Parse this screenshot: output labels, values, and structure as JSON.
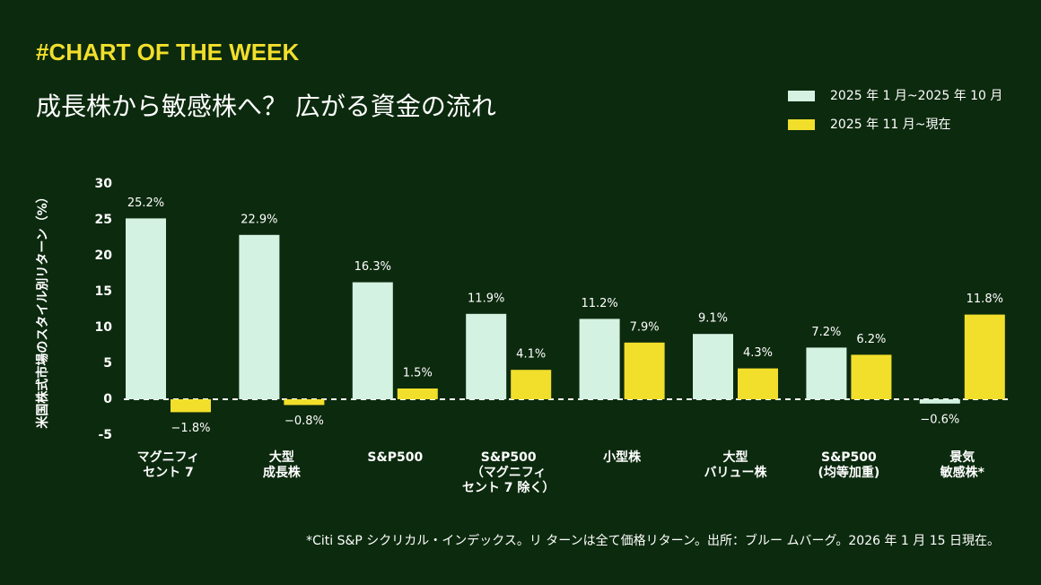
{
  "header": {
    "tag": "#CHART OF THE WEEK",
    "title": "成長株から敏感株へ？ 広がる資金の流れ"
  },
  "chart_data": {
    "type": "bar",
    "y_label": "米国株式市場のスタイル別リターン（%）",
    "categories": [
      "マグニフィ\nセント 7",
      "大型\n成長株",
      "S&P500",
      "S&P500\n（マグニフィ\nセント 7 除く）",
      "小型株",
      "大型\nバリュー株",
      "S&P500\n(均等加重)",
      "景気\n敏感株*"
    ],
    "series": [
      {
        "name": "2025 年 1 月~2025 年 10 月",
        "color": "#d3f2e1",
        "values": [
          25.2,
          22.9,
          16.3,
          11.9,
          11.2,
          9.1,
          7.2,
          -0.6
        ],
        "value_labels": [
          "25.2%",
          "22.9%",
          "16.3%",
          "11.9%",
          "11.2%",
          "9.1%",
          "7.2%",
          "−0.6%"
        ]
      },
      {
        "name": "2025 年 11 月~現在",
        "color": "#f2df2b",
        "values": [
          -1.8,
          -0.8,
          1.5,
          4.1,
          7.9,
          4.3,
          6.2,
          11.8
        ],
        "value_labels": [
          "−1.8%",
          "−0.8%",
          "1.5%",
          "4.1%",
          "7.9%",
          "4.3%",
          "6.2%",
          "11.8%"
        ]
      }
    ],
    "ylim": [
      -5,
      30
    ],
    "yticks": [
      -5,
      0,
      5,
      10,
      15,
      20,
      25,
      30
    ],
    "grid": false
  },
  "footnote": "*Citi S&P シクリカル・インデックス。リ ターンは全て価格リターン。出所：ブルー ムバーグ。2026 年 1 月 15 日現在。"
}
